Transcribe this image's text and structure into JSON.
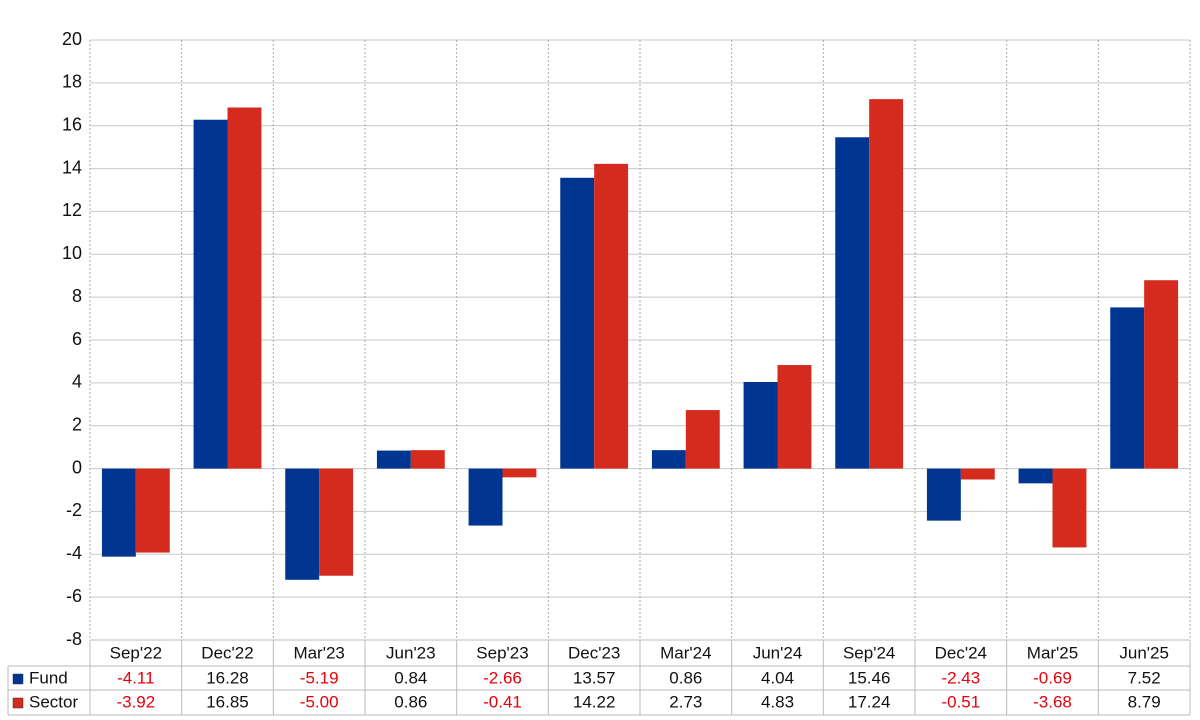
{
  "chart_data": {
    "type": "bar",
    "categories": [
      "Sep'22",
      "Dec'22",
      "Mar'23",
      "Jun'23",
      "Sep'23",
      "Dec'23",
      "Mar'24",
      "Jun'24",
      "Sep'24",
      "Dec'24",
      "Mar'25",
      "Jun'25"
    ],
    "series": [
      {
        "name": "Fund",
        "color": "#003591",
        "values": [
          -4.11,
          16.28,
          -5.19,
          0.84,
          -2.66,
          13.57,
          0.86,
          4.04,
          15.46,
          -2.43,
          -0.69,
          7.52
        ],
        "value_labels": [
          "-4.11",
          "16.28",
          "-5.19",
          "0.84",
          "-2.66",
          "13.57",
          "0.86",
          "4.04",
          "15.46",
          "-2.43",
          "-0.69",
          "7.52"
        ]
      },
      {
        "name": "Sector",
        "color": "#d52b1e",
        "values": [
          -3.92,
          16.85,
          -5.0,
          0.86,
          -0.41,
          14.22,
          2.73,
          4.83,
          17.24,
          -0.51,
          -3.68,
          8.79
        ],
        "value_labels": [
          "-3.92",
          "16.85",
          "-5.00",
          "0.86",
          "-0.41",
          "14.22",
          "2.73",
          "4.83",
          "17.24",
          "-0.51",
          "-3.68",
          "8.79"
        ]
      }
    ],
    "ylim": [
      -8,
      20
    ],
    "yticks": [
      -8,
      -6,
      -4,
      -2,
      0,
      2,
      4,
      6,
      8,
      10,
      12,
      14,
      16,
      18,
      20
    ],
    "grid": true
  }
}
